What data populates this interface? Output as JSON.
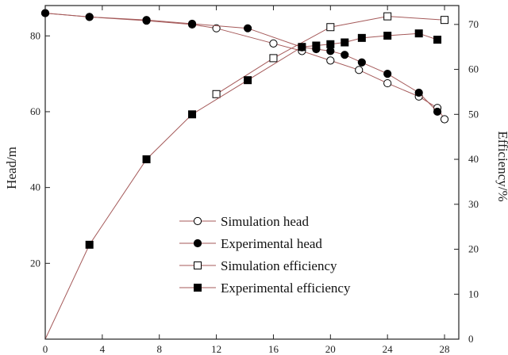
{
  "chart_data": {
    "type": "line",
    "title": "",
    "xlabel": "",
    "ylabel": "Head/m",
    "y2label": "Efficiency/%",
    "xlim": [
      0,
      29
    ],
    "ylim": [
      0,
      88
    ],
    "y2lim": [
      0,
      74.2
    ],
    "xticks": [
      0,
      4,
      8,
      12,
      16,
      20,
      24,
      28
    ],
    "yticks": [
      20,
      40,
      60,
      80
    ],
    "y2ticks": [
      0,
      10,
      20,
      30,
      40,
      50,
      60,
      70
    ],
    "grid": false,
    "legend": "center",
    "series": [
      {
        "name": "Simulation head",
        "axis": "left",
        "marker": "circle-open",
        "x": [
          0,
          3.1,
          7.1,
          10.3,
          12,
          16,
          18,
          20,
          22,
          24,
          26.2,
          27.5,
          28
        ],
        "y": [
          86,
          85,
          84,
          83,
          82,
          78,
          76,
          73.5,
          71,
          67.5,
          64,
          61,
          58
        ]
      },
      {
        "name": "Experimental head",
        "axis": "left",
        "marker": "circle-filled",
        "x": [
          0,
          3.1,
          7.1,
          10.3,
          14.2,
          18,
          19,
          20,
          21,
          22.2,
          24,
          26.2,
          27.5
        ],
        "y": [
          86,
          85,
          84.2,
          83.2,
          82,
          77,
          76.5,
          76,
          75,
          73,
          70,
          65,
          60
        ]
      },
      {
        "name": "Simulation efficiency",
        "axis": "right",
        "marker": "square-open",
        "x": [
          12,
          16,
          20,
          24,
          28
        ],
        "y": [
          54.5,
          62.5,
          69.4,
          71.8,
          71
        ]
      },
      {
        "name": "Experimental efficiency",
        "axis": "right",
        "marker": "square-filled",
        "x": [
          0,
          3.1,
          7.1,
          10.3,
          14.2,
          18,
          19,
          20,
          21,
          22.2,
          24,
          26.2,
          27.5
        ],
        "y": [
          0,
          21,
          40,
          50,
          57.6,
          65,
          65.3,
          65.6,
          66,
          67,
          67.5,
          68,
          66.6
        ]
      }
    ]
  }
}
